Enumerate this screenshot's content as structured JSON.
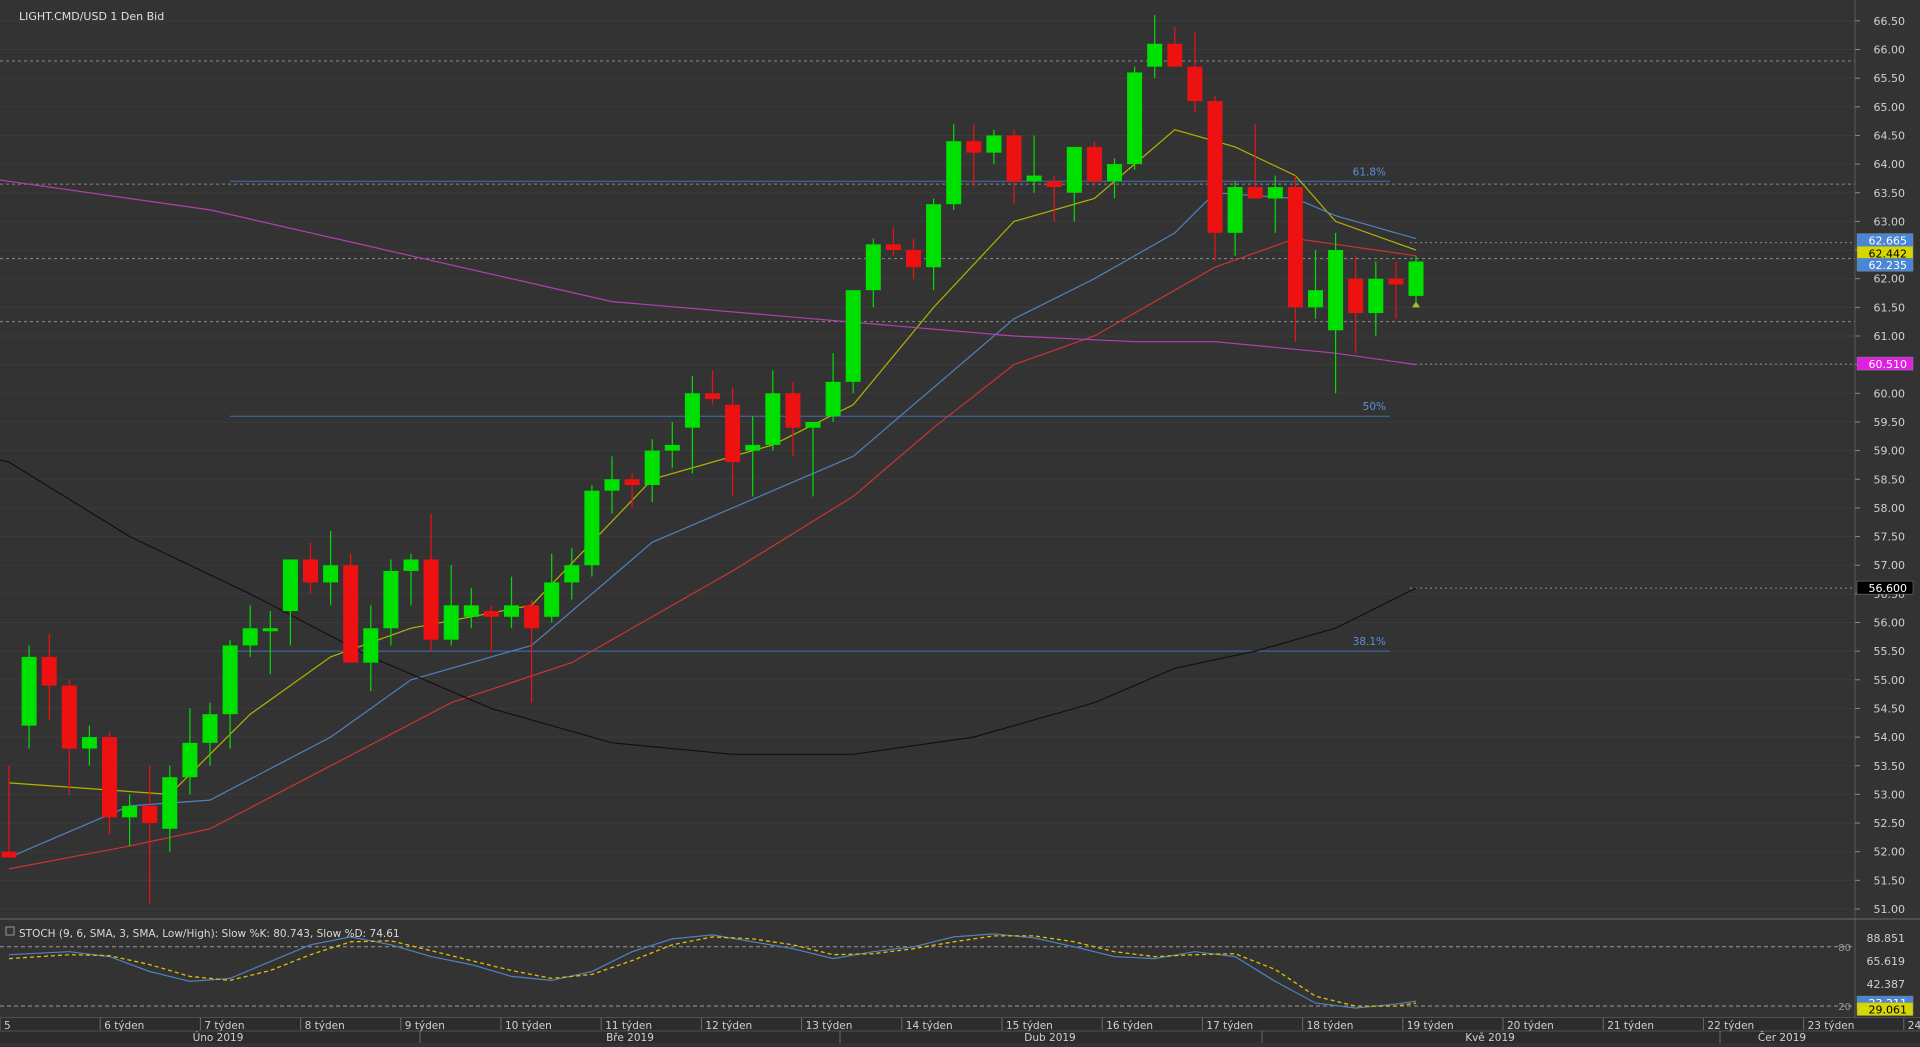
{
  "header": {
    "title": "LIGHT.CMD/USD  1 Den Bid"
  },
  "chart_data": {
    "type": "candlestick",
    "title": "LIGHT.CMD/USD  1 Den Bid",
    "price_axis": {
      "ylim": [
        50.85,
        66.9
      ],
      "ticks": [
        "51.00",
        "51.50",
        "52.00",
        "52.50",
        "53.00",
        "53.50",
        "54.00",
        "54.50",
        "55.00",
        "55.50",
        "56.00",
        "56.50",
        "57.00",
        "57.50",
        "58.00",
        "58.50",
        "59.00",
        "59.50",
        "60.00",
        "60.50",
        "61.00",
        "61.50",
        "62.00",
        "62.50",
        "63.00",
        "63.50",
        "64.00",
        "64.50",
        "65.00",
        "65.50",
        "66.00",
        "66.50"
      ]
    },
    "candles": [
      {
        "o": 52.0,
        "h": 53.5,
        "l": 51.9,
        "c": 51.9,
        "color": "red"
      },
      {
        "o": 54.2,
        "h": 55.6,
        "l": 53.8,
        "c": 55.4,
        "color": "green"
      },
      {
        "o": 55.4,
        "h": 55.8,
        "l": 54.3,
        "c": 54.9,
        "color": "red"
      },
      {
        "o": 54.9,
        "h": 55.0,
        "l": 53.0,
        "c": 53.8,
        "color": "red"
      },
      {
        "o": 53.8,
        "h": 54.2,
        "l": 53.5,
        "c": 54.0,
        "color": "green"
      },
      {
        "o": 54.0,
        "h": 54.1,
        "l": 52.3,
        "c": 52.6,
        "color": "red"
      },
      {
        "o": 52.6,
        "h": 53.0,
        "l": 52.1,
        "c": 52.8,
        "color": "green"
      },
      {
        "o": 52.8,
        "h": 53.5,
        "l": 51.1,
        "c": 52.5,
        "color": "red"
      },
      {
        "o": 52.4,
        "h": 53.5,
        "l": 52.0,
        "c": 53.3,
        "color": "green"
      },
      {
        "o": 53.3,
        "h": 54.5,
        "l": 53.0,
        "c": 53.9,
        "color": "green"
      },
      {
        "o": 53.9,
        "h": 54.6,
        "l": 53.5,
        "c": 54.4,
        "color": "green"
      },
      {
        "o": 54.4,
        "h": 55.7,
        "l": 53.8,
        "c": 55.6,
        "color": "green"
      },
      {
        "o": 55.6,
        "h": 56.3,
        "l": 55.4,
        "c": 55.9,
        "color": "green"
      },
      {
        "o": 55.9,
        "h": 56.2,
        "l": 55.1,
        "c": 55.9,
        "color": "green"
      },
      {
        "o": 56.2,
        "h": 57.1,
        "l": 55.6,
        "c": 57.1,
        "color": "green"
      },
      {
        "o": 57.1,
        "h": 57.4,
        "l": 56.5,
        "c": 56.7,
        "color": "red"
      },
      {
        "o": 56.7,
        "h": 57.6,
        "l": 56.3,
        "c": 57.0,
        "color": "green"
      },
      {
        "o": 57.0,
        "h": 57.2,
        "l": 55.3,
        "c": 55.3,
        "color": "red"
      },
      {
        "o": 55.3,
        "h": 56.3,
        "l": 54.8,
        "c": 55.9,
        "color": "green"
      },
      {
        "o": 55.9,
        "h": 57.1,
        "l": 55.6,
        "c": 56.9,
        "color": "green"
      },
      {
        "o": 56.9,
        "h": 57.2,
        "l": 56.3,
        "c": 57.1,
        "color": "green"
      },
      {
        "o": 57.1,
        "h": 57.9,
        "l": 55.5,
        "c": 55.7,
        "color": "red"
      },
      {
        "o": 55.7,
        "h": 57.0,
        "l": 55.6,
        "c": 56.3,
        "color": "green"
      },
      {
        "o": 56.3,
        "h": 56.6,
        "l": 55.9,
        "c": 56.1,
        "color": "green"
      },
      {
        "o": 56.2,
        "h": 56.3,
        "l": 55.5,
        "c": 56.1,
        "color": "red"
      },
      {
        "o": 56.1,
        "h": 56.8,
        "l": 55.9,
        "c": 56.3,
        "color": "green"
      },
      {
        "o": 56.3,
        "h": 56.4,
        "l": 54.6,
        "c": 55.9,
        "color": "red"
      },
      {
        "o": 56.1,
        "h": 57.2,
        "l": 56.0,
        "c": 56.7,
        "color": "green"
      },
      {
        "o": 56.7,
        "h": 57.3,
        "l": 56.4,
        "c": 57.0,
        "color": "green"
      },
      {
        "o": 57.0,
        "h": 58.4,
        "l": 56.8,
        "c": 58.3,
        "color": "green"
      },
      {
        "o": 58.3,
        "h": 58.9,
        "l": 57.9,
        "c": 58.5,
        "color": "green"
      },
      {
        "o": 58.5,
        "h": 58.6,
        "l": 58.0,
        "c": 58.4,
        "color": "red"
      },
      {
        "o": 58.4,
        "h": 59.2,
        "l": 58.1,
        "c": 59.0,
        "color": "green"
      },
      {
        "o": 59.0,
        "h": 59.5,
        "l": 58.7,
        "c": 59.1,
        "color": "green"
      },
      {
        "o": 59.4,
        "h": 60.3,
        "l": 58.6,
        "c": 60.0,
        "color": "green"
      },
      {
        "o": 60.0,
        "h": 60.4,
        "l": 59.8,
        "c": 59.9,
        "color": "red"
      },
      {
        "o": 59.8,
        "h": 60.1,
        "l": 58.2,
        "c": 58.8,
        "color": "red"
      },
      {
        "o": 59.0,
        "h": 59.6,
        "l": 58.2,
        "c": 59.1,
        "color": "green"
      },
      {
        "o": 59.1,
        "h": 60.4,
        "l": 59.0,
        "c": 60.0,
        "color": "green"
      },
      {
        "o": 60.0,
        "h": 60.2,
        "l": 58.9,
        "c": 59.4,
        "color": "red"
      },
      {
        "o": 59.4,
        "h": 59.5,
        "l": 58.2,
        "c": 59.5,
        "color": "green"
      },
      {
        "o": 59.6,
        "h": 60.7,
        "l": 59.5,
        "c": 60.2,
        "color": "green"
      },
      {
        "o": 60.2,
        "h": 61.8,
        "l": 60.0,
        "c": 61.8,
        "color": "green"
      },
      {
        "o": 61.8,
        "h": 62.7,
        "l": 61.5,
        "c": 62.6,
        "color": "green"
      },
      {
        "o": 62.6,
        "h": 62.9,
        "l": 62.4,
        "c": 62.5,
        "color": "red"
      },
      {
        "o": 62.5,
        "h": 62.7,
        "l": 62.0,
        "c": 62.2,
        "color": "red"
      },
      {
        "o": 62.2,
        "h": 63.4,
        "l": 61.8,
        "c": 63.3,
        "color": "green"
      },
      {
        "o": 63.3,
        "h": 64.7,
        "l": 63.2,
        "c": 64.4,
        "color": "green"
      },
      {
        "o": 64.4,
        "h": 64.7,
        "l": 63.6,
        "c": 64.2,
        "color": "red"
      },
      {
        "o": 64.2,
        "h": 64.6,
        "l": 64.0,
        "c": 64.5,
        "color": "green"
      },
      {
        "o": 64.5,
        "h": 64.6,
        "l": 63.3,
        "c": 63.7,
        "color": "red"
      },
      {
        "o": 63.7,
        "h": 64.5,
        "l": 63.5,
        "c": 63.8,
        "color": "green"
      },
      {
        "o": 63.7,
        "h": 63.8,
        "l": 63.0,
        "c": 63.6,
        "color": "red"
      },
      {
        "o": 63.5,
        "h": 64.3,
        "l": 63.0,
        "c": 64.3,
        "color": "green"
      },
      {
        "o": 64.3,
        "h": 64.4,
        "l": 63.6,
        "c": 63.7,
        "color": "red"
      },
      {
        "o": 63.7,
        "h": 64.1,
        "l": 63.4,
        "c": 64.0,
        "color": "green"
      },
      {
        "o": 64.0,
        "h": 65.7,
        "l": 63.9,
        "c": 65.6,
        "color": "green"
      },
      {
        "o": 65.7,
        "h": 66.6,
        "l": 65.5,
        "c": 66.1,
        "color": "green"
      },
      {
        "o": 66.1,
        "h": 66.4,
        "l": 65.7,
        "c": 65.7,
        "color": "red"
      },
      {
        "o": 65.7,
        "h": 66.3,
        "l": 64.9,
        "c": 65.1,
        "color": "red"
      },
      {
        "o": 65.1,
        "h": 65.2,
        "l": 62.3,
        "c": 62.8,
        "color": "red"
      },
      {
        "o": 62.8,
        "h": 63.7,
        "l": 62.4,
        "c": 63.6,
        "color": "green"
      },
      {
        "o": 63.6,
        "h": 64.7,
        "l": 63.4,
        "c": 63.4,
        "color": "red"
      },
      {
        "o": 63.4,
        "h": 63.8,
        "l": 62.8,
        "c": 63.6,
        "color": "green"
      },
      {
        "o": 63.6,
        "h": 63.8,
        "l": 60.9,
        "c": 61.5,
        "color": "red"
      },
      {
        "o": 61.5,
        "h": 62.5,
        "l": 61.3,
        "c": 61.8,
        "color": "green"
      },
      {
        "o": 61.1,
        "h": 62.8,
        "l": 60.0,
        "c": 62.5,
        "color": "green"
      },
      {
        "o": 62.0,
        "h": 62.4,
        "l": 60.7,
        "c": 61.4,
        "color": "red"
      },
      {
        "o": 61.4,
        "h": 62.3,
        "l": 61.0,
        "c": 62.0,
        "color": "green"
      },
      {
        "o": 62.0,
        "h": 62.3,
        "l": 61.3,
        "c": 61.9,
        "color": "red"
      },
      {
        "o": 61.7,
        "h": 62.4,
        "l": 61.6,
        "c": 62.3,
        "color": "green"
      }
    ],
    "moving_averages": [
      {
        "color": "#b3b300",
        "values": [
          [
            0,
            53.2
          ],
          [
            8,
            53.0
          ],
          [
            12,
            54.4
          ],
          [
            16,
            55.4
          ],
          [
            20,
            55.9
          ],
          [
            26,
            56.3
          ],
          [
            32,
            58.5
          ],
          [
            38,
            59.1
          ],
          [
            42,
            59.8
          ],
          [
            46,
            61.5
          ],
          [
            50,
            63.0
          ],
          [
            54,
            63.4
          ],
          [
            58,
            64.6
          ],
          [
            61,
            64.3
          ],
          [
            64,
            63.8
          ],
          [
            66,
            63.0
          ],
          [
            70,
            62.5
          ]
        ]
      },
      {
        "color": "#4f81bd",
        "values": [
          [
            0,
            51.9
          ],
          [
            6,
            52.8
          ],
          [
            10,
            52.9
          ],
          [
            16,
            54.0
          ],
          [
            20,
            55.0
          ],
          [
            26,
            55.6
          ],
          [
            32,
            57.4
          ],
          [
            38,
            58.3
          ],
          [
            42,
            58.9
          ],
          [
            46,
            60.1
          ],
          [
            50,
            61.3
          ],
          [
            54,
            62.0
          ],
          [
            58,
            62.8
          ],
          [
            60,
            63.5
          ],
          [
            64,
            63.4
          ],
          [
            66,
            63.1
          ],
          [
            70,
            62.7
          ]
        ]
      },
      {
        "color": "#cc3333",
        "values": [
          [
            0,
            51.7
          ],
          [
            6,
            52.1
          ],
          [
            10,
            52.4
          ],
          [
            16,
            53.5
          ],
          [
            22,
            54.6
          ],
          [
            28,
            55.3
          ],
          [
            36,
            56.9
          ],
          [
            42,
            58.2
          ],
          [
            46,
            59.4
          ],
          [
            50,
            60.5
          ],
          [
            54,
            61.0
          ],
          [
            58,
            61.8
          ],
          [
            60,
            62.2
          ],
          [
            64,
            62.7
          ],
          [
            66,
            62.6
          ],
          [
            70,
            62.4
          ]
        ]
      },
      {
        "color": "#111111",
        "values": [
          [
            -4,
            59.1
          ],
          [
            0,
            58.8
          ],
          [
            6,
            57.5
          ],
          [
            12,
            56.5
          ],
          [
            18,
            55.4
          ],
          [
            24,
            54.5
          ],
          [
            30,
            53.9
          ],
          [
            36,
            53.7
          ],
          [
            42,
            53.7
          ],
          [
            48,
            54.0
          ],
          [
            54,
            54.6
          ],
          [
            58,
            55.2
          ],
          [
            62,
            55.5
          ],
          [
            66,
            55.9
          ],
          [
            70,
            56.6
          ]
        ]
      },
      {
        "color": "#b040b0",
        "values": [
          [
            -4,
            63.9
          ],
          [
            0,
            63.7
          ],
          [
            10,
            63.2
          ],
          [
            20,
            62.4
          ],
          [
            30,
            61.6
          ],
          [
            40,
            61.3
          ],
          [
            50,
            61.0
          ],
          [
            56,
            60.9
          ],
          [
            60,
            60.9
          ],
          [
            66,
            60.7
          ],
          [
            70,
            60.5
          ]
        ]
      }
    ],
    "fibonacci": [
      {
        "label": "61.8%",
        "value": 63.7
      },
      {
        "label": "50%",
        "value": 59.6
      },
      {
        "label": "38.1%",
        "value": 55.5
      }
    ],
    "horizontal_lines": [
      65.8,
      63.65,
      62.35,
      61.25
    ],
    "price_tags": [
      {
        "label": "62.665",
        "bg": "#4a86d6",
        "fg": "#ffffff",
        "value": 62.665
      },
      {
        "label": "62.442",
        "bg": "#d6d600",
        "fg": "#000000",
        "value": 62.442
      },
      {
        "label": "62.235",
        "bg": "#4a86d6",
        "fg": "#ffffff",
        "value": 62.235
      },
      {
        "label": "60.510",
        "bg": "#e020e0",
        "fg": "#ffffff",
        "value": 60.51
      },
      {
        "label": "56.600",
        "bg": "#000000",
        "fg": "#ffffff",
        "value": 56.6
      }
    ],
    "stochastic": {
      "label": "STOCH (9, 6, SMA, 3, SMA, Low/High): Slow %K: 80.743, Slow %D: 74.61",
      "ylim": [
        15,
        100
      ],
      "ticks": [
        "88.851",
        "65.619",
        "42.387"
      ],
      "levels": [
        {
          "label": "80",
          "value": 80
        },
        {
          "label": "20",
          "value": 20
        }
      ],
      "k_color": "#4f81bd",
      "d_color": "#e0c000",
      "k": [
        [
          0,
          72
        ],
        [
          3,
          75
        ],
        [
          5,
          70
        ],
        [
          7,
          55
        ],
        [
          9,
          45
        ],
        [
          11,
          48
        ],
        [
          13,
          65
        ],
        [
          15,
          82
        ],
        [
          17,
          90
        ],
        [
          19,
          82
        ],
        [
          21,
          70
        ],
        [
          23,
          62
        ],
        [
          25,
          50
        ],
        [
          27,
          46
        ],
        [
          29,
          55
        ],
        [
          31,
          75
        ],
        [
          33,
          88
        ],
        [
          35,
          92
        ],
        [
          37,
          85
        ],
        [
          39,
          78
        ],
        [
          41,
          68
        ],
        [
          43,
          75
        ],
        [
          45,
          80
        ],
        [
          47,
          90
        ],
        [
          49,
          93
        ],
        [
          51,
          89
        ],
        [
          53,
          80
        ],
        [
          55,
          70
        ],
        [
          57,
          68
        ],
        [
          59,
          75
        ],
        [
          61,
          70
        ],
        [
          63,
          45
        ],
        [
          65,
          23
        ],
        [
          67,
          18
        ],
        [
          69,
          22
        ],
        [
          70,
          25
        ]
      ],
      "d": [
        [
          0,
          68
        ],
        [
          3,
          72
        ],
        [
          5,
          71
        ],
        [
          7,
          62
        ],
        [
          9,
          50
        ],
        [
          11,
          46
        ],
        [
          13,
          56
        ],
        [
          15,
          72
        ],
        [
          17,
          85
        ],
        [
          19,
          86
        ],
        [
          21,
          76
        ],
        [
          23,
          66
        ],
        [
          25,
          56
        ],
        [
          27,
          48
        ],
        [
          29,
          52
        ],
        [
          31,
          66
        ],
        [
          33,
          82
        ],
        [
          35,
          90
        ],
        [
          37,
          88
        ],
        [
          39,
          82
        ],
        [
          41,
          72
        ],
        [
          43,
          73
        ],
        [
          45,
          78
        ],
        [
          47,
          85
        ],
        [
          49,
          91
        ],
        [
          51,
          91
        ],
        [
          53,
          85
        ],
        [
          55,
          75
        ],
        [
          57,
          70
        ],
        [
          59,
          72
        ],
        [
          61,
          73
        ],
        [
          63,
          57
        ],
        [
          65,
          30
        ],
        [
          67,
          20
        ],
        [
          69,
          20
        ],
        [
          70,
          23
        ]
      ],
      "tags": [
        {
          "label": "23.211",
          "bg": "#4a86d6",
          "fg": "#ffffff",
          "value": 23
        },
        {
          "label": "29.061",
          "bg": "#d6d600",
          "fg": "#000000",
          "value": 16.5
        }
      ]
    },
    "x_axis": {
      "weeks": [
        "5",
        "6 týden",
        "7 týden",
        "8 týden",
        "9 týden",
        "10 týden",
        "11 týden",
        "12 týden",
        "13 týden",
        "14 týden",
        "15 týden",
        "16 týden",
        "17 týden",
        "18 týden",
        "19 týden",
        "20 týden",
        "21 týden",
        "22 týden",
        "23 týden",
        "24"
      ],
      "months": [
        "Úno 2019",
        "Bře 2019",
        "Dub 2019",
        "Kvě 2019",
        "Čer 2019"
      ]
    }
  }
}
